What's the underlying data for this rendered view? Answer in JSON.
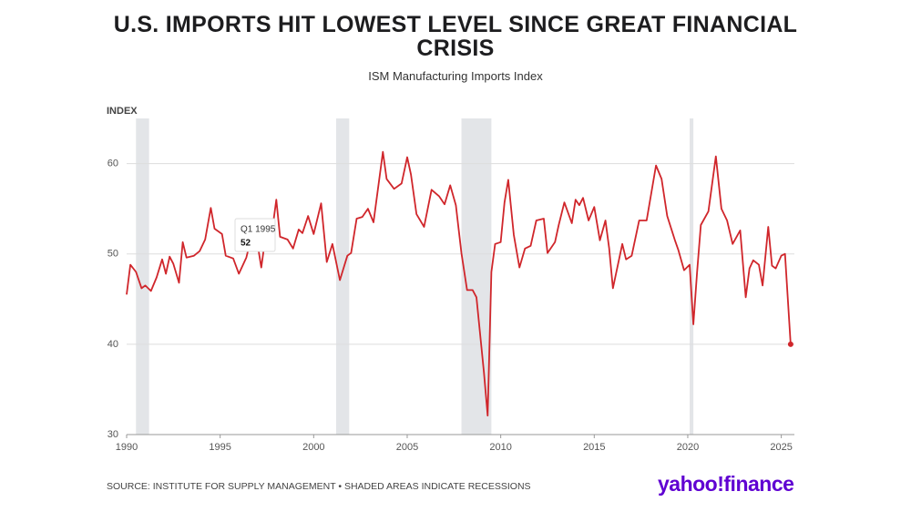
{
  "chart_data": {
    "type": "line",
    "title": "U.S. IMPORTS HIT LOWEST LEVEL SINCE GREAT FINANCIAL CRISIS",
    "subtitle": "ISM Manufacturing Imports Index",
    "y_label": "INDEX",
    "source": "SOURCE: INSTITUTE FOR SUPPLY MANAGEMENT • SHADED AREAS INDICATE RECESSIONS",
    "brand": "yahoo!finance",
    "color": "#d0262b",
    "recession_color": "#e3e5e8",
    "grid": true,
    "xlim": [
      1990,
      2025.7
    ],
    "xticks": [
      1990,
      1995,
      2000,
      2005,
      2010,
      2015,
      2020,
      2025
    ],
    "ylim": [
      30,
      65
    ],
    "yticks": [
      30,
      40,
      50,
      60
    ],
    "recessions": [
      [
        1990.5,
        1991.2
      ],
      [
        2001.2,
        2001.9
      ],
      [
        2007.9,
        2009.5
      ],
      [
        2020.1,
        2020.3
      ]
    ],
    "annotations": [
      {
        "label": "Q1 1995",
        "value": 52
      }
    ],
    "x": [
      1990,
      1990.2,
      1990.5,
      1990.8,
      1991.0,
      1991.3,
      1991.6,
      1991.9,
      1992.1,
      1992.3,
      1992.5,
      1992.8,
      1993.0,
      1993.2,
      1993.6,
      1993.9,
      1994.2,
      1994.5,
      1994.7,
      1995.1,
      1995.3,
      1995.7,
      1996.0,
      1996.4,
      1996.6,
      1997.0,
      1997.2,
      1997.4,
      1997.7,
      1998.0,
      1998.2,
      1998.6,
      1998.9,
      1999.2,
      1999.4,
      1999.7,
      2000.0,
      2000.4,
      2000.7,
      2001.0,
      2001.4,
      2001.8,
      2002.0,
      2002.3,
      2002.6,
      2002.9,
      2003.2,
      2003.7,
      2003.9,
      2004.3,
      2004.7,
      2005.0,
      2005.2,
      2005.5,
      2005.9,
      2006.3,
      2006.7,
      2007.0,
      2007.3,
      2007.6,
      2007.9,
      2008.2,
      2008.5,
      2008.7,
      2009.1,
      2009.3,
      2009.5,
      2009.7,
      2010.0,
      2010.2,
      2010.4,
      2010.7,
      2011.0,
      2011.3,
      2011.6,
      2011.9,
      2012.3,
      2012.5,
      2012.9,
      2013.1,
      2013.4,
      2013.8,
      2014.0,
      2014.2,
      2014.4,
      2014.7,
      2015.0,
      2015.3,
      2015.6,
      2015.8,
      2016.0,
      2016.5,
      2016.7,
      2017.0,
      2017.4,
      2017.8,
      2018.3,
      2018.6,
      2018.9,
      2019.3,
      2019.5,
      2019.8,
      2020.1,
      2020.3,
      2020.5,
      2020.7,
      2021.1,
      2021.5,
      2021.8,
      2022.1,
      2022.4,
      2022.8,
      2023.1,
      2023.3,
      2023.5,
      2023.8,
      2024.0,
      2024.3,
      2024.5,
      2024.7,
      2025.0,
      2025.2,
      2025.5
    ],
    "values": [
      45.5,
      48.8,
      48,
      46.2,
      46.5,
      45.9,
      47.4,
      49.4,
      47.8,
      49.7,
      48.9,
      46.8,
      51.3,
      49.6,
      49.8,
      50.3,
      51.6,
      55.1,
      52.8,
      52.2,
      49.8,
      49.5,
      47.8,
      49.6,
      51.3,
      51.1,
      48.5,
      51.5,
      51.3,
      56,
      51.9,
      51.6,
      50.6,
      52.7,
      52.3,
      54.2,
      52.2,
      55.6,
      49.1,
      51.1,
      47.1,
      49.8,
      50.1,
      53.9,
      54.1,
      55,
      53.5,
      61.3,
      58.3,
      57.2,
      57.8,
      60.7,
      58.8,
      54.4,
      53,
      57.1,
      56.4,
      55.5,
      57.6,
      55.4,
      50.1,
      46,
      46,
      45.2,
      36.9,
      32.1,
      48,
      51.1,
      51.3,
      55.7,
      58.2,
      52.1,
      48.5,
      50.6,
      50.9,
      53.7,
      53.9,
      50.1,
      51.3,
      53.2,
      55.7,
      53.4,
      56,
      55.4,
      56.2,
      53.7,
      55.2,
      51.5,
      53.7,
      50.6,
      46.2,
      51.1,
      49.4,
      49.8,
      53.7,
      53.7,
      59.8,
      58.3,
      54.2,
      51.6,
      50.4,
      48.2,
      48.8,
      42.2,
      48,
      53.2,
      54.7,
      60.8,
      55,
      53.7,
      51.1,
      52.6,
      45.2,
      48.4,
      49.3,
      48.8,
      46.5,
      53,
      48.7,
      48.4,
      49.8,
      50,
      40
    ]
  }
}
